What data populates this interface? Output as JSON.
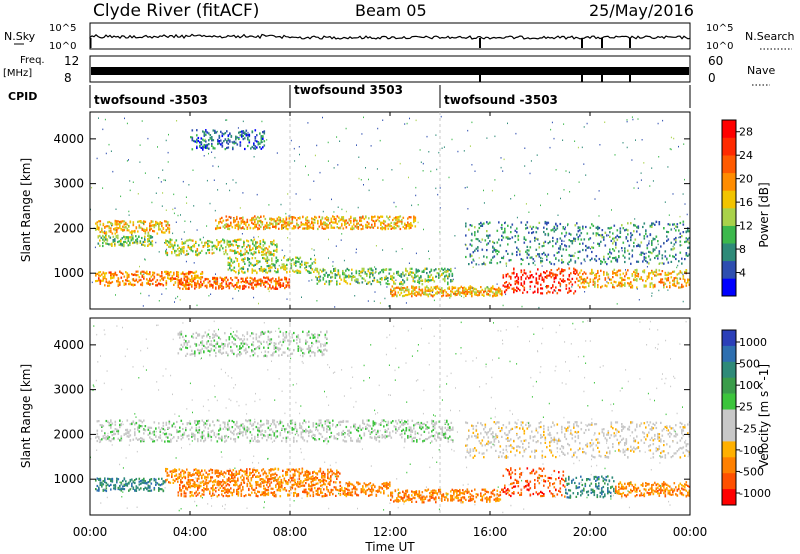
{
  "header": {
    "station": "Clyde River (fitACF)",
    "beam": "Beam 05",
    "date": "25/May/2016"
  },
  "strips": {
    "nsky_label": "N.Sky",
    "nsearch_label": "N.Search",
    "noise_ticks": [
      "10^5",
      "10^0"
    ],
    "freq_label": "Freq.",
    "freq_unit": "[MHz]",
    "freq_ticks": [
      "12",
      "8"
    ],
    "nave_label": "Nave",
    "nave_ticks": [
      "60",
      "0"
    ],
    "cpid_label": "CPID",
    "cpid_segments": [
      {
        "label": "twofsound -3503",
        "start_hour": 0
      },
      {
        "label": "twofsound 3503",
        "start_hour": 8
      },
      {
        "label": "twofsound -3503",
        "start_hour": 14
      }
    ]
  },
  "colors": {
    "power": [
      "#0000ff",
      "#2e4eb0",
      "#2e8a78",
      "#3cb84c",
      "#a9d24a",
      "#f2c400",
      "#ff8c00",
      "#ff5a00",
      "#ff2a00",
      "#ff0000"
    ],
    "velocity": [
      "#2b3fb8",
      "#2e6fb0",
      "#2e8a78",
      "#3a9c4a",
      "#3cc43c",
      "#c8c8c8",
      "#c8c8c8",
      "#ffb000",
      "#ff8000",
      "#ff5000",
      "#ff0000"
    ]
  },
  "chart_data": [
    {
      "type": "heatmap",
      "name": "power",
      "xlabel": "",
      "ylabel": "Slant Range [km]",
      "xlim": [
        0,
        24
      ],
      "ylim": [
        200,
        4600
      ],
      "yticks": [
        "1000",
        "2000",
        "3000",
        "4000"
      ],
      "colorbar_label": "Power [dB]",
      "colorbar_ticks": [
        "4",
        "8",
        "12",
        "16",
        "20",
        "24",
        "28"
      ],
      "colorbar_range": [
        0,
        30
      ],
      "bands": [
        {
          "t0": 0.2,
          "t1": 3.2,
          "r": 2050,
          "w": 180,
          "v": 17
        },
        {
          "t0": 0.3,
          "t1": 2.5,
          "r": 1750,
          "w": 150,
          "v": 12
        },
        {
          "t0": 0.2,
          "t1": 4.5,
          "r": 900,
          "w": 200,
          "v": 20
        },
        {
          "t0": 3.0,
          "t1": 7.5,
          "r": 1600,
          "w": 220,
          "v": 14
        },
        {
          "t0": 5.0,
          "t1": 13.0,
          "r": 2150,
          "w": 180,
          "v": 18
        },
        {
          "t0": 5.5,
          "t1": 9.0,
          "r": 1200,
          "w": 220,
          "v": 13
        },
        {
          "t0": 3.5,
          "t1": 8.0,
          "r": 800,
          "w": 160,
          "v": 22
        },
        {
          "t0": 9.0,
          "t1": 14.5,
          "r": 950,
          "w": 220,
          "v": 12
        },
        {
          "t0": 12.0,
          "t1": 16.5,
          "r": 620,
          "w": 140,
          "v": 18
        },
        {
          "t0": 15.0,
          "t1": 24.0,
          "r": 1700,
          "w": 600,
          "v": 8
        },
        {
          "t0": 16.5,
          "t1": 19.5,
          "r": 850,
          "w": 350,
          "v": 26
        },
        {
          "t0": 19.5,
          "t1": 24.0,
          "r": 900,
          "w": 250,
          "v": 18
        },
        {
          "t0": 4.0,
          "t1": 7.0,
          "r": 4000,
          "w": 280,
          "v": 6
        }
      ]
    },
    {
      "type": "heatmap",
      "name": "velocity",
      "xlabel": "Time UT",
      "ylabel": "Slant Range [km]",
      "xlim": [
        0,
        24
      ],
      "ylim": [
        200,
        4600
      ],
      "xticks": [
        "00:00",
        "04:00",
        "08:00",
        "12:00",
        "16:00",
        "20:00",
        "00:00"
      ],
      "yticks": [
        "1000",
        "2000",
        "3000",
        "4000"
      ],
      "colorbar_label": "Velocity [m s^-1]",
      "colorbar_ticks": [
        "1000",
        "500",
        "100",
        "25",
        "-25",
        "-100",
        "-500",
        "-1000"
      ],
      "bands": [
        {
          "t0": 0.2,
          "t1": 14.5,
          "r": 2100,
          "w": 300,
          "c": 5
        },
        {
          "t0": 3.5,
          "t1": 9.5,
          "r": 4050,
          "w": 350,
          "c": 5
        },
        {
          "t0": 3.0,
          "t1": 10.0,
          "r": 1100,
          "w": 200,
          "c": 8
        },
        {
          "t0": 3.5,
          "t1": 12.0,
          "r": 800,
          "w": 200,
          "c": 8
        },
        {
          "t0": 12.0,
          "t1": 16.5,
          "r": 650,
          "w": 180,
          "c": 8
        },
        {
          "t0": 0.2,
          "t1": 3.0,
          "r": 900,
          "w": 180,
          "c": 2
        },
        {
          "t0": 16.5,
          "t1": 19.0,
          "r": 950,
          "w": 400,
          "c": 9
        },
        {
          "t0": 19.0,
          "t1": 21.0,
          "r": 850,
          "w": 300,
          "c": 2
        },
        {
          "t0": 15.0,
          "t1": 24.0,
          "r": 1900,
          "w": 500,
          "c": 6
        },
        {
          "t0": 21.0,
          "t1": 24.0,
          "r": 800,
          "w": 200,
          "c": 8
        }
      ]
    }
  ]
}
